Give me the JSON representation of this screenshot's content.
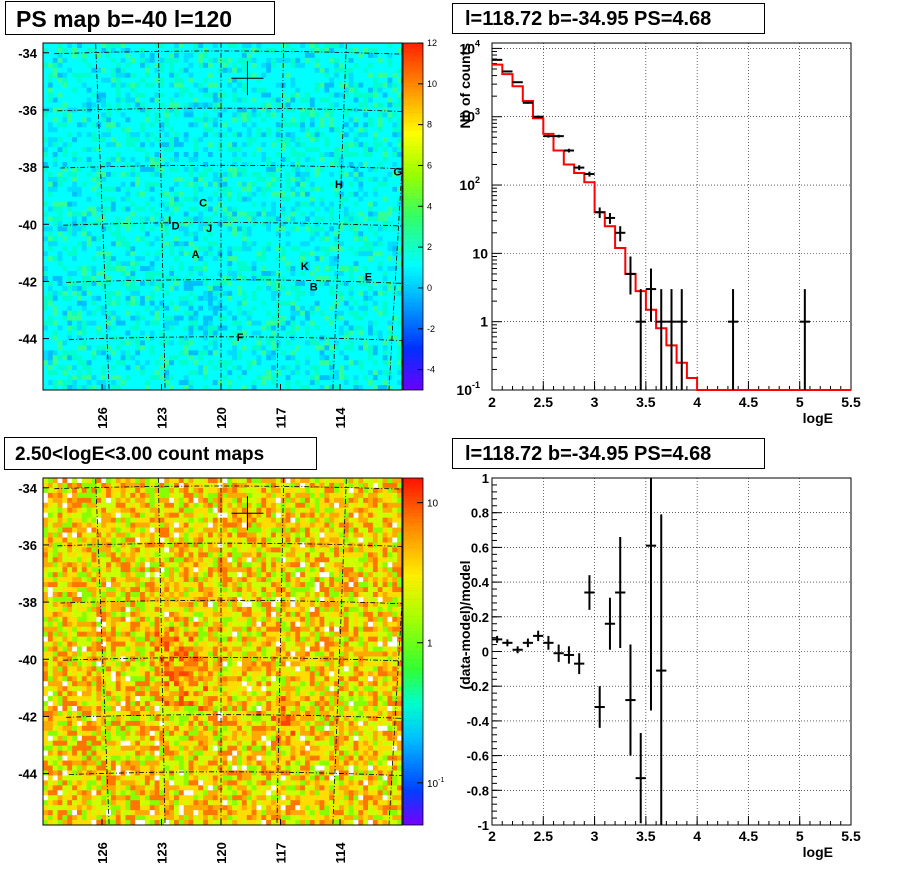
{
  "chart_data": [
    {
      "type": "heatmap",
      "title": "PS map b=-40 l=120",
      "y_ticks": [
        "-34",
        "-36",
        "-38",
        "-40",
        "-42",
        "-44"
      ],
      "x_ticks": [
        "126",
        "123",
        "120",
        "117",
        "114"
      ],
      "colorbar_ticks": [
        "12",
        "10",
        "8",
        "6",
        "4",
        "2",
        "0",
        "-2",
        "-4"
      ],
      "zlim": [
        -5,
        12
      ],
      "sources": [
        {
          "label": "G",
          "lon": 111.2,
          "lat": -38.1
        },
        {
          "label": "H",
          "lon": 114.1,
          "lat": -38.6
        },
        {
          "label": "C",
          "lon": 120.9,
          "lat": -39.3
        },
        {
          "label": "I",
          "lon": 122.6,
          "lat": -39.9
        },
        {
          "label": "D",
          "lon": 122.3,
          "lat": -40.1
        },
        {
          "label": "J",
          "lon": 120.6,
          "lat": -40.2
        },
        {
          "label": "A",
          "lon": 121.3,
          "lat": -41.1
        },
        {
          "label": "K",
          "lon": 115.7,
          "lat": -41.5
        },
        {
          "label": "E",
          "lon": 112.4,
          "lat": -41.8
        },
        {
          "label": "B",
          "lon": 115.2,
          "lat": -42.2
        },
        {
          "label": "F",
          "lon": 119.0,
          "lat": -44.0
        }
      ],
      "marker": {
        "lon": 118.72,
        "lat": -34.95
      }
    },
    {
      "type": "line",
      "title": "l=118.72 b=-34.95 PS=4.68",
      "xlabel": "logE",
      "ylabel": "Nb of counts",
      "xlim": [
        2,
        5.5
      ],
      "ylim": [
        0.1,
        12000
      ],
      "yscale": "log",
      "x_ticks": [
        "2",
        "2.5",
        "3",
        "3.5",
        "4",
        "4.5",
        "5",
        "5.5"
      ],
      "y_ticks": [
        {
          "value": 10000,
          "base": "10",
          "exp": "4"
        },
        {
          "value": 1000,
          "base": "10",
          "exp": "3"
        },
        {
          "value": 100,
          "base": "10",
          "exp": "2"
        },
        {
          "value": 10,
          "base": "10",
          "exp": ""
        },
        {
          "value": 1,
          "base": "1",
          "exp": ""
        },
        {
          "value": 0.1,
          "base": "10",
          "exp": "-1"
        }
      ],
      "series": [
        {
          "kind": "points",
          "x": [
            2.05,
            2.15,
            2.25,
            2.35,
            2.45,
            2.55,
            2.65,
            2.75,
            2.85,
            2.95,
            3.05,
            3.15,
            3.25,
            3.35,
            3.45,
            3.55,
            3.65,
            3.75,
            3.85,
            4.35,
            5.05
          ],
          "y": [
            6800,
            4600,
            3200,
            1600,
            1000,
            520,
            520,
            320,
            180,
            145,
            40,
            33,
            20,
            5,
            1,
            3,
            1,
            1,
            1,
            1,
            1
          ],
          "yerr_low": [
            100,
            90,
            70,
            50,
            40,
            25,
            25,
            20,
            15,
            12,
            7,
            6,
            5,
            2.5,
            0.9,
            2,
            0.9,
            0.9,
            0.9,
            0.9,
            0.9
          ],
          "yerr_high": [
            100,
            90,
            70,
            50,
            40,
            25,
            25,
            20,
            15,
            12,
            7,
            6,
            5,
            4,
            2.0,
            3,
            2.0,
            2.0,
            2.0,
            2.0,
            2.0
          ]
        },
        {
          "kind": "step",
          "color": "#ff0000",
          "x_edges": [
            2.0,
            2.1,
            2.2,
            2.3,
            2.4,
            2.5,
            2.6,
            2.7,
            2.8,
            2.9,
            3.0,
            3.1,
            3.2,
            3.3,
            3.4,
            3.5,
            3.6,
            3.7,
            3.8,
            3.9,
            4.0,
            5.5
          ],
          "y": [
            5800,
            4200,
            2800,
            1700,
            950,
            560,
            320,
            200,
            150,
            110,
            40,
            25,
            12,
            5,
            2.8,
            1.5,
            0.8,
            0.45,
            0.25,
            0.15,
            0.1
          ]
        }
      ]
    },
    {
      "type": "heatmap",
      "title": "2.50<logE<3.00 count maps",
      "y_ticks": [
        "-34",
        "-36",
        "-38",
        "-40",
        "-42",
        "-44"
      ],
      "x_ticks": [
        "126",
        "123",
        "120",
        "117",
        "114"
      ],
      "colorbar_ticks": [
        {
          "value": 10,
          "base": "10",
          "exp": ""
        },
        {
          "value": 1,
          "base": "1",
          "exp": ""
        },
        {
          "value": 0.1,
          "base": "10",
          "exp": "-1"
        }
      ],
      "zscale": "log",
      "zlim": [
        0.05,
        15
      ]
    },
    {
      "type": "scatter",
      "title": "l=118.72 b=-34.95 PS=4.68",
      "xlabel": "logE",
      "ylabel": "(data-model)/model",
      "xlim": [
        2,
        5.5
      ],
      "ylim": [
        -1,
        1
      ],
      "x_ticks": [
        "2",
        "2.5",
        "3",
        "3.5",
        "4",
        "4.5",
        "5",
        "5.5"
      ],
      "y_ticks": [
        "1",
        "0.8",
        "0.6",
        "0.4",
        "0.2",
        "0",
        "-0.2",
        "-0.4",
        "-0.6",
        "-0.8",
        "-1"
      ],
      "series": [
        {
          "kind": "points",
          "x": [
            2.05,
            2.15,
            2.25,
            2.35,
            2.45,
            2.55,
            2.65,
            2.75,
            2.85,
            2.95,
            3.05,
            3.15,
            3.25,
            3.35,
            3.45,
            3.55,
            3.65
          ],
          "y": [
            0.07,
            0.05,
            0.01,
            0.05,
            0.09,
            0.05,
            -0.01,
            -0.02,
            -0.07,
            0.34,
            -0.32,
            0.16,
            0.34,
            -0.28,
            -0.73,
            0.61,
            -0.11
          ],
          "yerr": [
            0.02,
            0.02,
            0.02,
            0.025,
            0.03,
            0.04,
            0.05,
            0.05,
            0.06,
            0.1,
            0.12,
            0.15,
            0.32,
            0.32,
            0.26,
            0.95,
            0.9
          ]
        }
      ]
    }
  ]
}
